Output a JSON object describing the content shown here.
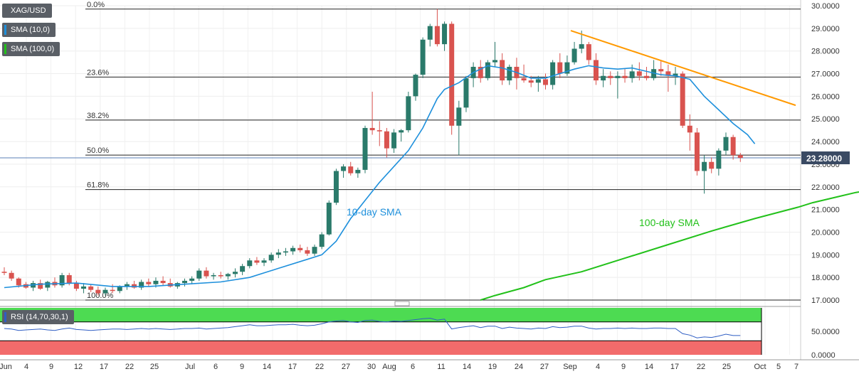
{
  "legend": {
    "symbol": "XAG/USD",
    "sma10": "SMA (10,0)",
    "sma100": "SMA (100,0)",
    "rsi": "RSI (14,70,30,1)"
  },
  "colors": {
    "bull": "#2a7a6a",
    "bear": "#d9534f",
    "sma10": "#1e90dc",
    "sma100": "#22c11a",
    "trendline": "#ff9900",
    "rsi_overbought": "#4ddb52",
    "rsi_oversold": "#f26b6b",
    "rsi_line": "#2f5ec4"
  },
  "price_label": "23.28000",
  "annotations": {
    "sma10_label": "10-day SMA",
    "sma100_label": "100-day SMA"
  },
  "chart_data": {
    "type": "candlestick",
    "y_axis": {
      "min": 17.0,
      "max": 30.0,
      "ticks": [
        "30.0000",
        "29.0000",
        "28.0000",
        "27.0000",
        "26.0000",
        "25.0000",
        "24.0000",
        "23.0000",
        "22.0000",
        "21.0000",
        "20.0000",
        "19.0000",
        "18.0000",
        "17.0000"
      ]
    },
    "x_labels": [
      "Jun",
      "4",
      "9",
      "12",
      "17",
      "22",
      "25",
      "Jul",
      "6",
      "9",
      "14",
      "17",
      "22",
      "27",
      "30",
      "Aug",
      "6",
      "11",
      "14",
      "19",
      "24",
      "27",
      "Sep",
      "4",
      "9",
      "14",
      "17",
      "22",
      "25",
      "Oct",
      "5",
      "7"
    ],
    "fibonacci": [
      {
        "label": "0.0%",
        "value": 29.85
      },
      {
        "label": "23.6%",
        "value": 26.85
      },
      {
        "label": "38.2%",
        "value": 24.95
      },
      {
        "label": "50.0%",
        "value": 23.4
      },
      {
        "label": "61.8%",
        "value": 21.88
      },
      {
        "label": "100.0%",
        "value": 17.0
      }
    ],
    "last_price": 23.28,
    "trendline": {
      "from": {
        "date": "Sep 1",
        "value": 28.9
      },
      "to": {
        "date": "Oct 9",
        "value": 25.6
      }
    },
    "candles": [
      [
        18.25,
        18.45,
        18.1,
        18.2
      ],
      [
        18.2,
        18.3,
        17.85,
        17.95
      ],
      [
        17.95,
        18.0,
        17.55,
        17.65
      ],
      [
        17.7,
        17.8,
        17.5,
        17.55
      ],
      [
        17.55,
        17.85,
        17.4,
        17.75
      ],
      [
        17.75,
        17.9,
        17.45,
        17.5
      ],
      [
        17.55,
        17.85,
        17.4,
        17.8
      ],
      [
        17.8,
        18.0,
        17.55,
        17.65
      ],
      [
        17.65,
        18.2,
        17.55,
        18.1
      ],
      [
        18.1,
        18.2,
        17.65,
        17.75
      ],
      [
        17.75,
        17.85,
        17.4,
        17.5
      ],
      [
        17.5,
        17.75,
        17.3,
        17.6
      ],
      [
        17.6,
        17.7,
        17.35,
        17.45
      ],
      [
        17.45,
        17.6,
        17.2,
        17.3
      ],
      [
        17.3,
        17.55,
        17.2,
        17.45
      ],
      [
        17.45,
        17.7,
        17.3,
        17.4
      ],
      [
        17.4,
        17.65,
        17.3,
        17.6
      ],
      [
        17.6,
        17.8,
        17.45,
        17.7
      ],
      [
        17.7,
        17.85,
        17.5,
        17.55
      ],
      [
        17.55,
        17.9,
        17.45,
        17.8
      ],
      [
        17.8,
        17.95,
        17.6,
        17.7
      ],
      [
        17.7,
        18.0,
        17.55,
        17.85
      ],
      [
        17.85,
        18.05,
        17.65,
        17.75
      ],
      [
        17.75,
        17.95,
        17.55,
        17.6
      ],
      [
        17.6,
        17.8,
        17.5,
        17.75
      ],
      [
        17.75,
        17.95,
        17.6,
        17.85
      ],
      [
        17.85,
        18.05,
        17.7,
        17.95
      ],
      [
        17.95,
        18.4,
        17.85,
        18.3
      ],
      [
        18.3,
        18.45,
        17.95,
        18.05
      ],
      [
        18.05,
        18.2,
        17.9,
        18.1
      ],
      [
        18.1,
        18.25,
        17.95,
        18.05
      ],
      [
        18.05,
        18.2,
        17.9,
        18.15
      ],
      [
        18.15,
        18.4,
        18.0,
        18.25
      ],
      [
        18.25,
        18.6,
        18.1,
        18.5
      ],
      [
        18.5,
        18.85,
        18.4,
        18.75
      ],
      [
        18.75,
        18.9,
        18.55,
        18.65
      ],
      [
        18.65,
        18.85,
        18.5,
        18.75
      ],
      [
        18.75,
        19.1,
        18.65,
        19.0
      ],
      [
        19.0,
        19.25,
        18.85,
        19.1
      ],
      [
        19.1,
        19.3,
        18.95,
        19.15
      ],
      [
        19.15,
        19.4,
        19.0,
        19.3
      ],
      [
        19.3,
        19.45,
        19.1,
        19.2
      ],
      [
        19.2,
        19.35,
        18.95,
        19.05
      ],
      [
        19.05,
        19.45,
        18.95,
        19.35
      ],
      [
        19.35,
        20.0,
        19.25,
        19.9
      ],
      [
        19.9,
        21.4,
        19.85,
        21.3
      ],
      [
        21.3,
        22.8,
        21.2,
        22.7
      ],
      [
        22.7,
        23.0,
        22.4,
        22.9
      ],
      [
        22.9,
        23.1,
        22.5,
        22.6
      ],
      [
        22.6,
        22.85,
        22.4,
        22.75
      ],
      [
        22.75,
        24.7,
        22.6,
        24.6
      ],
      [
        24.6,
        26.2,
        24.3,
        24.5
      ],
      [
        24.5,
        24.9,
        23.8,
        24.45
      ],
      [
        24.45,
        24.6,
        23.3,
        23.7
      ],
      [
        23.7,
        24.55,
        23.5,
        24.4
      ],
      [
        24.4,
        24.55,
        24.0,
        24.5
      ],
      [
        24.5,
        26.2,
        24.4,
        26.0
      ],
      [
        26.0,
        27.0,
        25.8,
        26.95
      ],
      [
        26.95,
        28.6,
        26.8,
        28.5
      ],
      [
        28.5,
        29.2,
        28.2,
        29.1
      ],
      [
        29.1,
        29.85,
        28.2,
        28.3
      ],
      [
        28.3,
        29.3,
        28.0,
        29.2
      ],
      [
        29.2,
        29.3,
        24.3,
        24.7
      ],
      [
        24.7,
        25.8,
        23.4,
        25.5
      ],
      [
        25.5,
        26.9,
        25.3,
        26.8
      ],
      [
        26.8,
        27.5,
        26.4,
        27.3
      ],
      [
        27.3,
        27.6,
        26.6,
        26.8
      ],
      [
        26.8,
        27.6,
        26.7,
        27.5
      ],
      [
        27.5,
        28.4,
        27.3,
        27.6
      ],
      [
        27.6,
        27.9,
        26.5,
        26.7
      ],
      [
        26.7,
        27.4,
        26.5,
        27.3
      ],
      [
        27.3,
        27.7,
        26.3,
        26.8
      ],
      [
        26.8,
        27.4,
        26.6,
        26.7
      ],
      [
        26.7,
        26.9,
        26.4,
        26.6
      ],
      [
        26.6,
        26.9,
        26.2,
        26.75
      ],
      [
        26.75,
        27.0,
        26.3,
        26.5
      ],
      [
        26.5,
        27.6,
        26.3,
        27.5
      ],
      [
        27.5,
        27.9,
        26.8,
        27.0
      ],
      [
        27.0,
        27.8,
        26.9,
        27.5
      ],
      [
        27.5,
        28.4,
        27.4,
        28.1
      ],
      [
        28.1,
        28.9,
        27.9,
        28.3
      ],
      [
        28.3,
        28.4,
        27.4,
        27.6
      ],
      [
        27.6,
        27.9,
        26.5,
        26.7
      ],
      [
        26.7,
        27.2,
        26.4,
        26.9
      ],
      [
        26.9,
        27.1,
        26.5,
        26.8
      ],
      [
        26.8,
        27.1,
        25.9,
        26.9
      ],
      [
        26.9,
        27.2,
        26.6,
        26.8
      ],
      [
        26.8,
        27.4,
        26.6,
        27.1
      ],
      [
        27.1,
        27.5,
        26.7,
        26.9
      ],
      [
        26.9,
        27.3,
        26.7,
        26.8
      ],
      [
        26.8,
        27.6,
        26.7,
        27.2
      ],
      [
        27.2,
        27.6,
        26.9,
        27.1
      ],
      [
        27.1,
        27.4,
        26.2,
        26.9
      ],
      [
        26.9,
        27.3,
        26.5,
        27.0
      ],
      [
        27.0,
        27.1,
        24.6,
        24.7
      ],
      [
        24.7,
        25.2,
        23.6,
        24.4
      ],
      [
        24.4,
        24.6,
        22.5,
        22.7
      ],
      [
        22.7,
        23.4,
        21.7,
        23.1
      ],
      [
        23.1,
        23.3,
        22.6,
        22.8
      ],
      [
        22.8,
        23.7,
        22.5,
        23.6
      ],
      [
        23.6,
        24.4,
        23.4,
        24.2
      ],
      [
        24.2,
        24.3,
        23.2,
        23.4
      ],
      [
        23.4,
        23.5,
        23.1,
        23.28
      ]
    ],
    "sma10": [
      [
        0,
        17.55
      ],
      [
        5,
        17.7
      ],
      [
        10,
        17.75
      ],
      [
        15,
        17.6
      ],
      [
        20,
        17.6
      ],
      [
        25,
        17.7
      ],
      [
        30,
        17.8
      ],
      [
        34,
        18.0
      ],
      [
        38,
        18.4
      ],
      [
        42,
        18.8
      ],
      [
        44,
        19.0
      ],
      [
        46,
        19.6
      ],
      [
        48,
        20.6
      ],
      [
        50,
        21.4
      ],
      [
        52,
        22.2
      ],
      [
        54,
        22.9
      ],
      [
        56,
        23.6
      ],
      [
        58,
        24.6
      ],
      [
        60,
        25.9
      ],
      [
        61,
        26.3
      ],
      [
        63,
        26.6
      ],
      [
        65,
        27.05
      ],
      [
        67,
        27.35
      ],
      [
        69,
        27.25
      ],
      [
        71,
        27.05
      ],
      [
        73,
        26.8
      ],
      [
        75,
        26.8
      ],
      [
        77,
        27.0
      ],
      [
        79,
        27.2
      ],
      [
        81,
        27.35
      ],
      [
        83,
        27.25
      ],
      [
        85,
        27.2
      ],
      [
        87,
        27.25
      ],
      [
        89,
        27.1
      ],
      [
        91,
        26.95
      ],
      [
        93,
        26.9
      ],
      [
        95,
        26.75
      ],
      [
        97,
        26.0
      ],
      [
        99,
        25.4
      ],
      [
        101,
        24.8
      ],
      [
        103,
        24.3
      ],
      [
        104,
        23.9
      ]
    ],
    "sma100": [
      [
        66,
        17.0
      ],
      [
        68,
        17.2
      ],
      [
        72,
        17.55
      ],
      [
        75,
        17.9
      ],
      [
        80,
        18.25
      ],
      [
        86,
        18.85
      ],
      [
        92,
        19.45
      ],
      [
        98,
        20.05
      ],
      [
        104,
        20.6
      ],
      [
        110,
        21.1
      ],
      [
        112,
        21.3
      ],
      [
        116,
        21.6
      ],
      [
        118,
        21.75
      ],
      [
        121,
        21.9
      ],
      [
        124,
        22.1
      ]
    ],
    "rsi": {
      "levels": {
        "overbought": 70,
        "oversold": 30
      },
      "axis_ticks": [
        "50.0000",
        "0.0000"
      ],
      "values": [
        56,
        55,
        52,
        53,
        54,
        55,
        53,
        52,
        55,
        57,
        54,
        53,
        52,
        53,
        54,
        55,
        55,
        54,
        55,
        56,
        55,
        56,
        55,
        54,
        55,
        56,
        56,
        57,
        55,
        56,
        57,
        58,
        60,
        62,
        64,
        62,
        62,
        63,
        64,
        64,
        65,
        63,
        62,
        63,
        66,
        70,
        72,
        73,
        70,
        69,
        73,
        74,
        71,
        70,
        72,
        71,
        73,
        75,
        77,
        78,
        74,
        76,
        55,
        58,
        60,
        62,
        58,
        61,
        61,
        56,
        59,
        57,
        56,
        55,
        57,
        56,
        60,
        58,
        59,
        61,
        61,
        57,
        55,
        56,
        56,
        57,
        56,
        57,
        56,
        56,
        57,
        57,
        56,
        56,
        45,
        42,
        36,
        38,
        37,
        40,
        44,
        41,
        41
      ]
    }
  }
}
